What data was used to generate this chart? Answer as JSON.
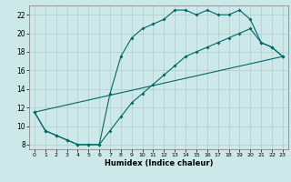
{
  "xlabel": "Humidex (Indice chaleur)",
  "bg_color": "#cde8e8",
  "line_color": "#006868",
  "grid_color": "#b0cccc",
  "xlim": [
    -0.5,
    23.5
  ],
  "ylim": [
    7.5,
    23.0
  ],
  "xticks": [
    0,
    1,
    2,
    3,
    4,
    5,
    6,
    7,
    8,
    9,
    10,
    11,
    12,
    13,
    14,
    15,
    16,
    17,
    18,
    19,
    20,
    21,
    22,
    23
  ],
  "yticks": [
    8,
    10,
    12,
    14,
    16,
    18,
    20,
    22
  ],
  "line1_x": [
    0,
    1,
    2,
    3,
    4,
    5,
    6,
    7,
    8,
    9,
    10,
    11,
    12,
    13,
    14,
    15,
    16,
    17,
    18,
    19,
    20,
    21,
    22,
    23
  ],
  "line1_y": [
    11.5,
    9.5,
    9.0,
    8.5,
    8.0,
    8.0,
    8.0,
    13.5,
    17.5,
    19.5,
    20.5,
    21.0,
    21.5,
    22.5,
    22.5,
    22.0,
    22.5,
    22.0,
    22.0,
    22.5,
    21.5,
    19.0,
    18.5,
    17.5
  ],
  "line2_x": [
    0,
    1,
    2,
    3,
    4,
    5,
    6,
    7,
    8,
    9,
    10,
    11,
    12,
    13,
    14,
    15,
    16,
    17,
    18,
    19,
    20,
    21,
    22,
    23
  ],
  "line2_y": [
    11.5,
    9.5,
    9.0,
    8.5,
    8.0,
    8.0,
    8.0,
    9.5,
    11.0,
    12.5,
    13.5,
    14.5,
    15.5,
    16.5,
    17.5,
    18.0,
    18.5,
    19.0,
    19.5,
    20.0,
    20.5,
    19.0,
    18.5,
    17.5
  ],
  "line3_x": [
    0,
    23
  ],
  "line3_y": [
    11.5,
    17.5
  ]
}
